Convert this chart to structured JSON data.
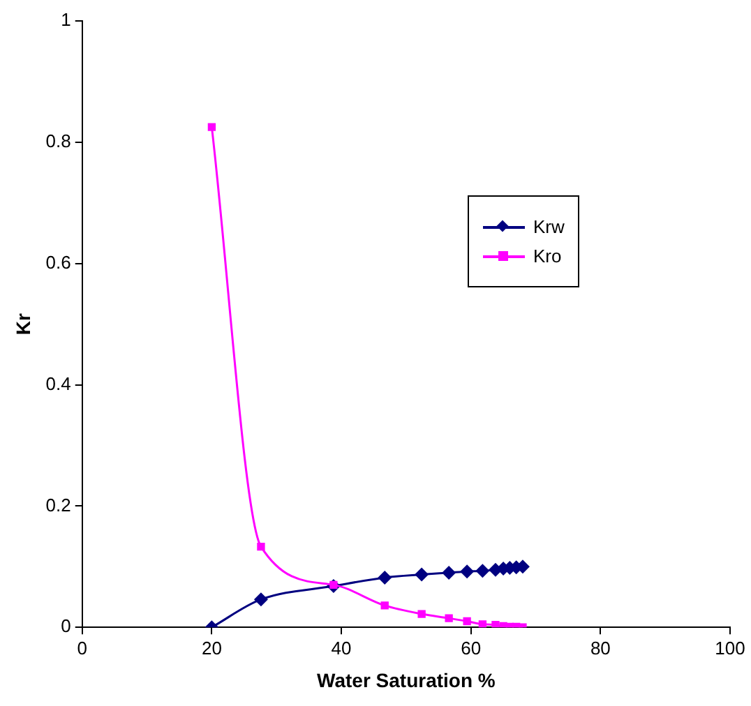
{
  "chart_data": {
    "type": "line",
    "xlabel": "Water Saturation %",
    "ylabel": "Kr",
    "xlim": [
      0,
      100
    ],
    "xticks": [
      0,
      20,
      40,
      60,
      80,
      100
    ],
    "ylim": [
      0,
      1
    ],
    "yticks": [
      0,
      0.2,
      0.4,
      0.6,
      0.8,
      1
    ],
    "grid": false,
    "legend": "right",
    "series": [
      {
        "name": "Krw",
        "color": "#000080",
        "marker": "diamond",
        "x": [
          20,
          27.6,
          38.8,
          46.7,
          52.4,
          56.6,
          59.4,
          61.8,
          63.8,
          65,
          66,
          67,
          68
        ],
        "values": [
          0,
          0.046,
          0.068,
          0.082,
          0.087,
          0.09,
          0.092,
          0.093,
          0.095,
          0.097,
          0.098,
          0.099,
          0.1
        ]
      },
      {
        "name": "Kro",
        "color": "#ff00ff",
        "marker": "square",
        "x": [
          20,
          27.6,
          38.8,
          46.7,
          52.4,
          56.6,
          59.4,
          61.8,
          63.8,
          65,
          66,
          67,
          68
        ],
        "values": [
          0.825,
          0.133,
          0.07,
          0.036,
          0.022,
          0.015,
          0.01,
          0.005,
          0.004,
          0.002,
          0.001,
          0.001,
          0
        ]
      }
    ]
  }
}
